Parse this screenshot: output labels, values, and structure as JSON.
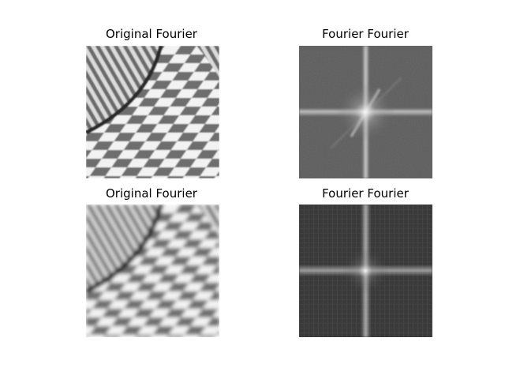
{
  "figure": {
    "panels": [
      {
        "id": "original-top",
        "title": "Original Fourier",
        "kind": "checkerboard-image",
        "blur": "low"
      },
      {
        "id": "spectrum-top",
        "title": "Fourier Fourier",
        "kind": "fourier-spectrum",
        "background": "#5a5a5a"
      },
      {
        "id": "original-bottom",
        "title": "Original Fourier",
        "kind": "checkerboard-image",
        "blur": "high"
      },
      {
        "id": "spectrum-bottom",
        "title": "Fourier Fourier",
        "kind": "fourier-spectrum",
        "background": "#3a3a3a"
      }
    ]
  }
}
